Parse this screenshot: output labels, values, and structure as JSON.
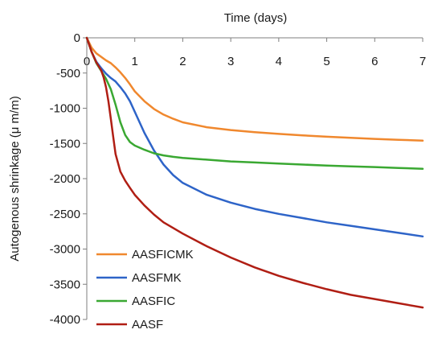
{
  "chart_data": {
    "type": "line",
    "title": "",
    "xlabel": "Time (days)",
    "ylabel": "Autogenous shrinkage (μ m/m)",
    "xlim": [
      0,
      7
    ],
    "ylim": [
      -4000,
      0
    ],
    "x_axis_position": "top",
    "x_ticks": [
      "0",
      "1",
      "2",
      "3",
      "4",
      "5",
      "6",
      "7"
    ],
    "y_ticks": [
      "0",
      "-500",
      "-1000",
      "-1500",
      "-2000",
      "-2500",
      "-3000",
      "-3500",
      "-4000"
    ],
    "grid": false,
    "legend_position": "bottom-left",
    "series": [
      {
        "name": "AASFICMK",
        "color": "#f0882e",
        "x": [
          0,
          0.1,
          0.2,
          0.3,
          0.4,
          0.5,
          0.6,
          0.7,
          0.8,
          0.9,
          1.0,
          1.2,
          1.4,
          1.6,
          1.8,
          2.0,
          2.5,
          3.0,
          3.5,
          4.0,
          4.5,
          5.0,
          5.5,
          6.0,
          6.5,
          7.0
        ],
        "values": [
          0,
          -140,
          -220,
          -270,
          -320,
          -360,
          -420,
          -490,
          -570,
          -660,
          -760,
          -900,
          -1010,
          -1090,
          -1150,
          -1200,
          -1270,
          -1310,
          -1340,
          -1365,
          -1385,
          -1405,
          -1420,
          -1435,
          -1448,
          -1460
        ]
      },
      {
        "name": "AASFMK",
        "color": "#2e64c8",
        "x": [
          0,
          0.1,
          0.2,
          0.3,
          0.4,
          0.5,
          0.6,
          0.7,
          0.8,
          0.9,
          1.0,
          1.1,
          1.2,
          1.4,
          1.6,
          1.8,
          2.0,
          2.5,
          3.0,
          3.5,
          4.0,
          4.5,
          5.0,
          5.5,
          6.0,
          6.5,
          7.0
        ],
        "values": [
          0,
          -200,
          -340,
          -430,
          -510,
          -570,
          -620,
          -700,
          -790,
          -900,
          -1050,
          -1200,
          -1350,
          -1600,
          -1800,
          -1950,
          -2060,
          -2230,
          -2340,
          -2430,
          -2500,
          -2560,
          -2620,
          -2670,
          -2720,
          -2770,
          -2820
        ]
      },
      {
        "name": "AASFIC",
        "color": "#3aa832",
        "x": [
          0,
          0.1,
          0.2,
          0.3,
          0.4,
          0.5,
          0.6,
          0.7,
          0.8,
          0.9,
          1.0,
          1.2,
          1.4,
          1.6,
          1.8,
          2.0,
          2.5,
          3.0,
          3.5,
          4.0,
          4.5,
          5.0,
          5.5,
          6.0,
          6.5,
          7.0
        ],
        "values": [
          0,
          -200,
          -360,
          -470,
          -580,
          -730,
          -950,
          -1200,
          -1380,
          -1480,
          -1530,
          -1590,
          -1640,
          -1670,
          -1690,
          -1705,
          -1730,
          -1755,
          -1770,
          -1785,
          -1800,
          -1815,
          -1825,
          -1835,
          -1848,
          -1860
        ]
      },
      {
        "name": "AASF",
        "color": "#b01e14",
        "x": [
          0,
          0.1,
          0.2,
          0.3,
          0.35,
          0.4,
          0.45,
          0.5,
          0.55,
          0.6,
          0.7,
          0.8,
          0.9,
          1.0,
          1.2,
          1.4,
          1.6,
          1.8,
          2.0,
          2.5,
          3.0,
          3.5,
          4.0,
          4.5,
          5.0,
          5.5,
          6.0,
          6.5,
          7.0
        ],
        "values": [
          0,
          -200,
          -350,
          -460,
          -560,
          -700,
          -900,
          -1150,
          -1400,
          -1650,
          -1900,
          -2030,
          -2130,
          -2230,
          -2380,
          -2510,
          -2620,
          -2700,
          -2780,
          -2960,
          -3120,
          -3260,
          -3380,
          -3480,
          -3570,
          -3650,
          -3710,
          -3770,
          -3830
        ]
      }
    ]
  }
}
